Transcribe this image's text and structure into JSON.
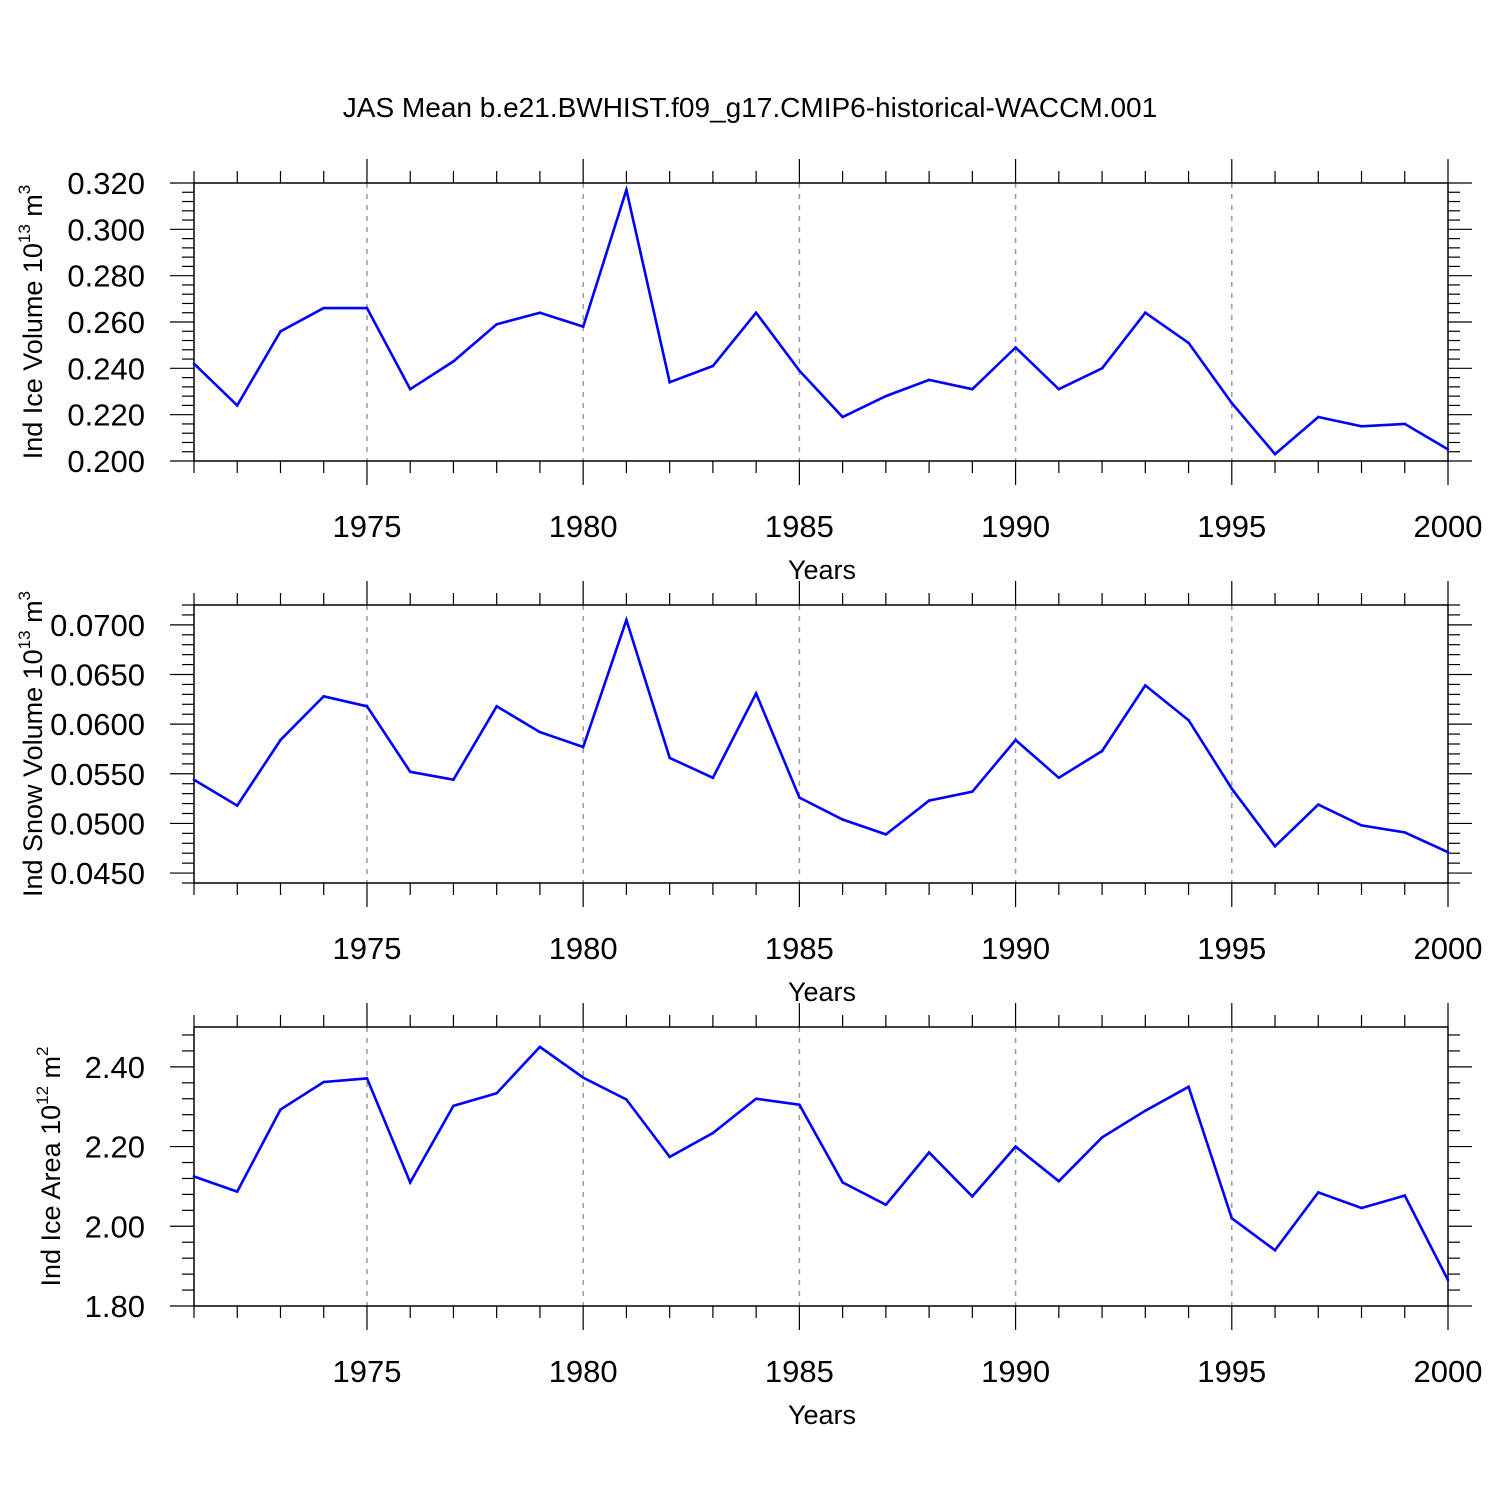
{
  "figure": {
    "title": "JAS Mean b.e21.BWHIST.f09_g17.CMIP6-historical-WACCM.001"
  },
  "colors": {
    "series_line": "#0000ff",
    "axis": "#000000",
    "grid": "#9a9a9a"
  },
  "chart_data": [
    {
      "type": "line",
      "title": "",
      "xlabel": "Years",
      "ylabel_main": "Ind Ice Volume 10",
      "ylabel_exp": "13",
      "ylabel_unit": " m",
      "ylabel_unit_exp": "3",
      "xlim": [
        1971,
        2000
      ],
      "ylim": [
        0.2,
        0.32
      ],
      "xticks": [
        1975,
        1980,
        1985,
        1990,
        1995,
        2000
      ],
      "xtick_labels": [
        "1975",
        "1980",
        "1985",
        "1990",
        "1995",
        "2000"
      ],
      "yticks": [
        0.2,
        0.22,
        0.24,
        0.26,
        0.28,
        0.3,
        0.32
      ],
      "ytick_labels": [
        "0.200",
        "0.220",
        "0.240",
        "0.260",
        "0.280",
        "0.300",
        "0.320"
      ],
      "grid": "vertical dashed at major x ticks",
      "x": [
        1971,
        1972,
        1973,
        1974,
        1975,
        1976,
        1977,
        1978,
        1979,
        1980,
        1981,
        1982,
        1983,
        1984,
        1985,
        1986,
        1987,
        1988,
        1989,
        1990,
        1991,
        1992,
        1993,
        1994,
        1995,
        1996,
        1997,
        1998,
        1999,
        2000
      ],
      "values": [
        0.242,
        0.224,
        0.256,
        0.266,
        0.266,
        0.231,
        0.243,
        0.259,
        0.264,
        0.258,
        0.317,
        0.234,
        0.241,
        0.264,
        0.239,
        0.219,
        0.228,
        0.235,
        0.231,
        0.249,
        0.231,
        0.24,
        0.264,
        0.251,
        0.225,
        0.203,
        0.219,
        0.215,
        0.216,
        0.205
      ]
    },
    {
      "type": "line",
      "title": "",
      "xlabel": "Years",
      "ylabel_main": "Ind Snow Volume 10",
      "ylabel_exp": "13",
      "ylabel_unit": " m",
      "ylabel_unit_exp": "3",
      "xlim": [
        1971,
        2000
      ],
      "ylim": [
        0.044,
        0.072
      ],
      "xticks": [
        1975,
        1980,
        1985,
        1990,
        1995,
        2000
      ],
      "xtick_labels": [
        "1975",
        "1980",
        "1985",
        "1990",
        "1995",
        "2000"
      ],
      "yticks": [
        0.045,
        0.05,
        0.055,
        0.06,
        0.065,
        0.07
      ],
      "ytick_labels": [
        "0.0450",
        "0.0500",
        "0.0550",
        "0.0600",
        "0.0650",
        "0.0700"
      ],
      "grid": "vertical dashed at major x ticks",
      "x": [
        1971,
        1972,
        1973,
        1974,
        1975,
        1976,
        1977,
        1978,
        1979,
        1980,
        1981,
        1982,
        1983,
        1984,
        1985,
        1986,
        1987,
        1988,
        1989,
        1990,
        1991,
        1992,
        1993,
        1994,
        1995,
        1996,
        1997,
        1998,
        1999,
        2000
      ],
      "values": [
        0.0544,
        0.0518,
        0.0584,
        0.0628,
        0.0618,
        0.0552,
        0.0544,
        0.0618,
        0.0592,
        0.0577,
        0.0705,
        0.0566,
        0.0546,
        0.0631,
        0.0526,
        0.0504,
        0.0489,
        0.0523,
        0.0532,
        0.0584,
        0.0546,
        0.0573,
        0.0639,
        0.0604,
        0.0535,
        0.0477,
        0.0519,
        0.0498,
        0.0491,
        0.0471
      ]
    },
    {
      "type": "line",
      "title": "",
      "xlabel": "Years",
      "ylabel_main": "Ind Ice Area 10",
      "ylabel_exp": "12",
      "ylabel_unit": " m",
      "ylabel_unit_exp": "2",
      "xlim": [
        1971,
        2000
      ],
      "ylim": [
        1.8,
        2.5
      ],
      "xticks": [
        1975,
        1980,
        1985,
        1990,
        1995,
        2000
      ],
      "xtick_labels": [
        "1975",
        "1980",
        "1985",
        "1990",
        "1995",
        "2000"
      ],
      "yticks": [
        1.8,
        2.0,
        2.2,
        2.4
      ],
      "ytick_labels": [
        "1.80",
        "2.00",
        "2.20",
        "2.40"
      ],
      "grid": "vertical dashed at major x ticks",
      "x": [
        1971,
        1972,
        1973,
        1974,
        1975,
        1976,
        1977,
        1978,
        1979,
        1980,
        1981,
        1982,
        1983,
        1984,
        1985,
        1986,
        1987,
        1988,
        1989,
        1990,
        1991,
        1992,
        1993,
        1994,
        1995,
        1996,
        1997,
        1998,
        1999,
        2000
      ],
      "values": [
        2.125,
        2.087,
        2.293,
        2.362,
        2.371,
        2.11,
        2.302,
        2.334,
        2.45,
        2.373,
        2.318,
        2.174,
        2.234,
        2.32,
        2.305,
        2.11,
        2.054,
        2.185,
        2.075,
        2.2,
        2.113,
        2.223,
        2.29,
        2.35,
        2.02,
        1.94,
        2.085,
        2.046,
        2.077,
        1.865
      ]
    }
  ]
}
